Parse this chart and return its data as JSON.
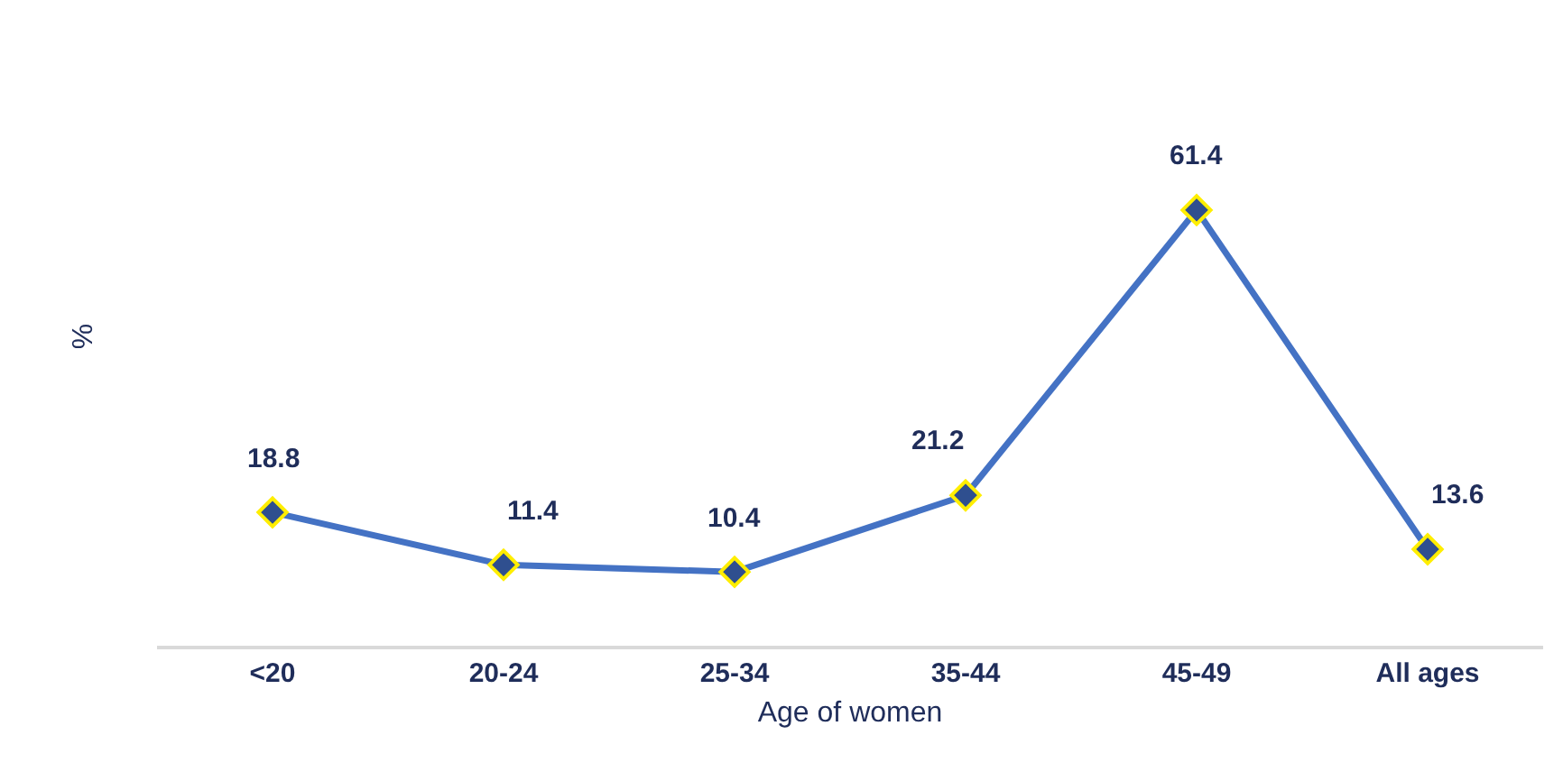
{
  "chart_data": {
    "type": "line",
    "xlabel": "Age of women",
    "ylabel": "%",
    "categories": [
      "<20",
      "20-24",
      "25-34",
      "35-44",
      "45-49",
      "All ages"
    ],
    "series": [
      {
        "color": "#4472c4",
        "values": [
          18.8,
          11.4,
          10.4,
          21.2,
          61.4,
          13.6
        ]
      }
    ],
    "data_labels": true,
    "marker": "diamond"
  }
}
